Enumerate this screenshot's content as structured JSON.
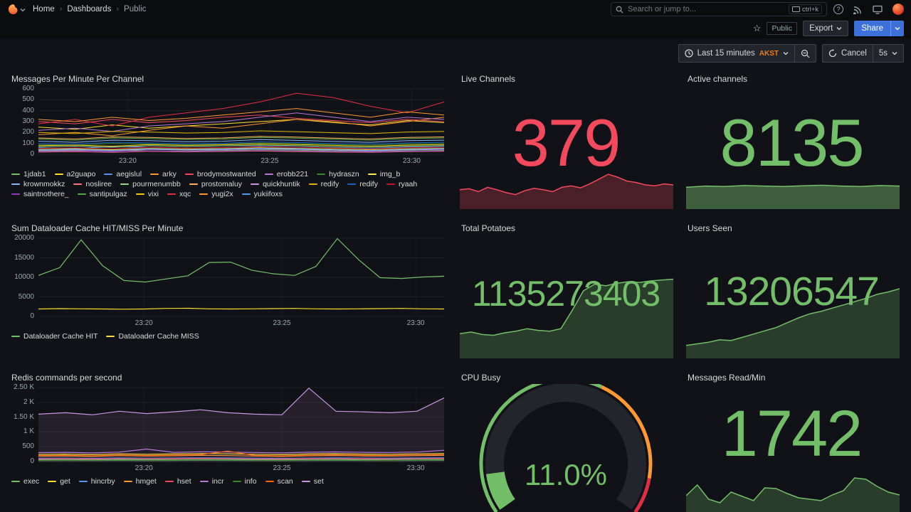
{
  "chrome": {
    "breadcrumbs": [
      "Home",
      "Dashboards",
      "Public"
    ],
    "search": {
      "placeholder": "Search or jump to...",
      "shortcut": "ctrl+k"
    },
    "badges": {
      "public": "Public"
    },
    "buttons": {
      "export": "Export",
      "share": "Share",
      "cancel": "Cancel",
      "interval": "5s"
    },
    "time": {
      "range": "Last 15 minutes",
      "tz": "AKST"
    }
  },
  "panels": {
    "messages": {
      "title": "Messages Per Minute Per Channel",
      "type": "line",
      "y_max": 600,
      "y_ticks": [
        "0",
        "100",
        "200",
        "300",
        "400",
        "500",
        "600"
      ],
      "x_ticks": [
        {
          "label": "23:20",
          "pos": 0.22
        },
        {
          "label": "23:25",
          "pos": 0.57
        },
        {
          "label": "23:30",
          "pos": 0.92
        }
      ],
      "series": [
        {
          "name": "1jdab1",
          "color": "#73BF69",
          "values": [
            30,
            35,
            40,
            32,
            28,
            35,
            42,
            38,
            30,
            25,
            32,
            36
          ]
        },
        {
          "name": "a2guapo",
          "color": "#FADE2A",
          "values": [
            250,
            230,
            270,
            240,
            260,
            280,
            300,
            320,
            290,
            270,
            310,
            290
          ]
        },
        {
          "name": "aegislul",
          "color": "#5794F2",
          "values": [
            60,
            55,
            70,
            65,
            58,
            62,
            75,
            68,
            60,
            55,
            65,
            70
          ]
        },
        {
          "name": "arky",
          "color": "#FF9830",
          "values": [
            180,
            200,
            170,
            220,
            260,
            240,
            280,
            320,
            300,
            260,
            300,
            340
          ]
        },
        {
          "name": "brodymostwanted",
          "color": "#F2495C",
          "values": [
            300,
            280,
            320,
            290,
            310,
            340,
            360,
            330,
            310,
            290,
            320,
            300
          ]
        },
        {
          "name": "erobb221",
          "color": "#B877D9",
          "values": [
            220,
            240,
            210,
            260,
            280,
            300,
            340,
            380,
            340,
            300,
            340,
            320
          ]
        },
        {
          "name": "hydraszn",
          "color": "#37872D",
          "values": [
            90,
            85,
            100,
            95,
            88,
            92,
            105,
            98,
            90,
            85,
            95,
            100
          ]
        },
        {
          "name": "img_b",
          "color": "#FFEE52",
          "values": [
            45,
            50,
            42,
            55,
            48,
            52,
            60,
            55,
            48,
            42,
            50,
            55
          ]
        },
        {
          "name": "krownmokkz",
          "color": "#8AB8FF",
          "values": [
            120,
            110,
            130,
            125,
            115,
            120,
            135,
            128,
            118,
            110,
            125,
            130
          ]
        },
        {
          "name": "nosliree",
          "color": "#FF7383",
          "values": [
            20,
            25,
            18,
            28,
            22,
            26,
            30,
            25,
            20,
            18,
            24,
            28
          ]
        },
        {
          "name": "pourmenumbb",
          "color": "#96D98D",
          "values": [
            70,
            75,
            65,
            80,
            72,
            78,
            85,
            80,
            70,
            65,
            75,
            80
          ]
        },
        {
          "name": "prostomaluy",
          "color": "#FFB357",
          "values": [
            150,
            140,
            160,
            155,
            145,
            150,
            165,
            158,
            148,
            140,
            155,
            160
          ]
        },
        {
          "name": "quickhuntik",
          "color": "#CA95E5",
          "values": [
            35,
            40,
            30,
            45,
            38,
            42,
            50,
            45,
            38,
            30,
            40,
            45
          ]
        },
        {
          "name": "redify",
          "color": "#E0B400",
          "values": [
            200,
            190,
            210,
            205,
            195,
            200,
            215,
            208,
            198,
            190,
            205,
            210
          ]
        },
        {
          "name": "redify",
          "color": "#1F60C4",
          "values": [
            100,
            95,
            110,
            105,
            98,
            102,
            115,
            108,
            100,
            95,
            105,
            110
          ]
        },
        {
          "name": "ryaah",
          "color": "#C4162A",
          "values": [
            55,
            60,
            50,
            65,
            58,
            62,
            70,
            65,
            58,
            50,
            60,
            65
          ]
        },
        {
          "name": "saintnothere_",
          "color": "#8F3BB8",
          "values": [
            25,
            30,
            22,
            32,
            26,
            30,
            35,
            30,
            25,
            22,
            28,
            32
          ]
        },
        {
          "name": "santipulgaz",
          "color": "#56A64B",
          "values": [
            140,
            130,
            150,
            145,
            135,
            140,
            155,
            148,
            138,
            130,
            145,
            150
          ]
        },
        {
          "name": "vixi",
          "color": "#F2CC0C",
          "values": [
            80,
            85,
            75,
            90,
            82,
            88,
            95,
            90,
            82,
            75,
            85,
            90
          ]
        },
        {
          "name": "xqc",
          "color": "#E02F44",
          "values": [
            280,
            320,
            260,
            340,
            380,
            420,
            480,
            560,
            520,
            440,
            380,
            480
          ]
        },
        {
          "name": "yugi2x",
          "color": "#FF9830",
          "values": [
            320,
            300,
            340,
            310,
            330,
            360,
            390,
            420,
            380,
            340,
            390,
            360
          ]
        },
        {
          "name": "yukiifoxs",
          "color": "#5794F2",
          "values": [
            40,
            45,
            35,
            50,
            42,
            48,
            55,
            50,
            42,
            35,
            45,
            50
          ]
        }
      ]
    },
    "live_channels": {
      "title": "Live Channels",
      "value": "379",
      "color": "#F2495C",
      "fill": "rgba(242,73,92,0.25)",
      "spark": [
        40,
        42,
        36,
        45,
        40,
        34,
        30,
        38,
        43,
        40,
        36,
        45,
        48,
        44,
        52,
        62,
        72,
        66,
        58,
        55,
        50,
        48,
        52,
        50
      ]
    },
    "active_channels": {
      "title": "Active channels",
      "value": "8135",
      "color": "#73BF69",
      "fill": "rgba(115,191,105,0.45)",
      "spark": [
        85,
        90,
        88,
        92,
        90,
        88,
        91,
        93,
        90,
        88,
        92,
        90
      ]
    },
    "dataloader": {
      "title": "Sum Dataloader Cache HIT/MISS Per Minute",
      "type": "line",
      "lw": 1.2,
      "y_max": 20000,
      "y_ticks": [
        "0",
        "5000",
        "10000",
        "15000",
        "20000"
      ],
      "x_ticks": [
        {
          "label": "23:20",
          "pos": 0.26
        },
        {
          "label": "23:25",
          "pos": 0.6
        },
        {
          "label": "23:30",
          "pos": 0.93
        }
      ],
      "series": [
        {
          "name": "Dataloader Cache HIT",
          "color": "#73BF69",
          "values": [
            10500,
            12500,
            19600,
            13000,
            9200,
            8800,
            9600,
            10400,
            13800,
            13900,
            11800,
            10900,
            10500,
            12800,
            19900,
            14500,
            9900,
            9700,
            10100,
            10300
          ]
        },
        {
          "name": "Dataloader Cache MISS",
          "color": "#FADE2A",
          "values": [
            1900,
            2000,
            1950,
            1900,
            1850,
            1900,
            2050,
            2100,
            1950,
            1900,
            1950,
            2000,
            2050,
            1950,
            1900,
            1950,
            2000,
            2050,
            1950,
            1900
          ]
        }
      ]
    },
    "total_potatoes": {
      "title": "Total Potatoes",
      "value": "1135273403",
      "color": "#73BF69",
      "fill": "rgba(115,191,105,0.25)",
      "spark": [
        30,
        32,
        29,
        28,
        31,
        33,
        36,
        34,
        33,
        36,
        58,
        82,
        90,
        88,
        91,
        93,
        92,
        94,
        95,
        96
      ]
    },
    "users_seen": {
      "title": "Users Seen",
      "value": "13206547",
      "color": "#73BF69",
      "fill": "rgba(115,191,105,0.25)",
      "spark": [
        16,
        18,
        20,
        23,
        22,
        26,
        30,
        34,
        38,
        44,
        50,
        55,
        58,
        62,
        66,
        70,
        74,
        79,
        82,
        86
      ]
    },
    "redis": {
      "title": "Redis commands per second",
      "type": "line",
      "lw": 1.2,
      "y_max": 2500,
      "y_ticks": [
        "0",
        "500",
        "1 K",
        "1.50 K",
        "2 K",
        "2.50 K"
      ],
      "x_ticks": [
        {
          "label": "23:20",
          "pos": 0.26
        },
        {
          "label": "23:25",
          "pos": 0.6
        },
        {
          "label": "23:30",
          "pos": 0.93
        }
      ],
      "series": [
        {
          "name": "exec",
          "color": "#73BF69",
          "values": [
            60,
            65,
            55,
            70,
            60,
            65,
            75,
            70,
            60,
            55,
            65,
            70,
            60,
            65,
            75,
            70
          ]
        },
        {
          "name": "get",
          "color": "#FADE2A",
          "values": [
            240,
            250,
            230,
            260,
            245,
            255,
            270,
            260,
            245,
            230,
            255,
            265,
            250,
            245,
            260,
            270
          ]
        },
        {
          "name": "hincrby",
          "color": "#5794F2",
          "values": [
            110,
            115,
            105,
            120,
            112,
            118,
            125,
            120,
            110,
            105,
            115,
            122,
            115,
            110,
            120,
            125
          ]
        },
        {
          "name": "hmget",
          "color": "#FF9830",
          "values": [
            180,
            190,
            170,
            200,
            185,
            195,
            210,
            200,
            185,
            170,
            195,
            205,
            190,
            185,
            200,
            210
          ]
        },
        {
          "name": "hset",
          "color": "#F2495C",
          "values": [
            90,
            95,
            85,
            100,
            92,
            98,
            105,
            100,
            90,
            85,
            95,
            102,
            95,
            90,
            100,
            105
          ]
        },
        {
          "name": "incr",
          "color": "#B877D9",
          "values": [
            300,
            310,
            290,
            320,
            420,
            310,
            330,
            320,
            305,
            290,
            315,
            325,
            310,
            305,
            320,
            380
          ]
        },
        {
          "name": "info",
          "color": "#37872D",
          "values": [
            30,
            32,
            28,
            35,
            30,
            33,
            38,
            35,
            30,
            28,
            32,
            36,
            32,
            30,
            35,
            38
          ]
        },
        {
          "name": "scan",
          "color": "#FA6400",
          "values": [
            200,
            210,
            190,
            220,
            205,
            215,
            230,
            350,
            205,
            190,
            215,
            225,
            210,
            205,
            220,
            230
          ]
        },
        {
          "name": "set",
          "color": "#CA95E5",
          "fill": "rgba(202,149,229,0.10)",
          "values": [
            1600,
            1650,
            1580,
            1700,
            1620,
            1680,
            1750,
            1650,
            1600,
            1580,
            2480,
            1700,
            1680,
            1650,
            1700,
            2150
          ]
        }
      ]
    },
    "cpu_busy": {
      "title": "CPU Busy",
      "value": "11.0%",
      "percent": 11,
      "color": "#73BF69",
      "thresholds": [
        {
          "upto": 60,
          "color": "#73BF69"
        },
        {
          "upto": 90,
          "color": "#FF9830"
        },
        {
          "upto": 100,
          "color": "#E02F44"
        }
      ]
    },
    "messages_read": {
      "title": "Messages Read/Min",
      "value": "1742",
      "color": "#73BF69",
      "fill": "rgba(115,191,105,0.25)",
      "spark": [
        45,
        60,
        40,
        35,
        50,
        44,
        38,
        56,
        55,
        48,
        42,
        40,
        38,
        46,
        52,
        70,
        68,
        58,
        50,
        46
      ]
    }
  }
}
